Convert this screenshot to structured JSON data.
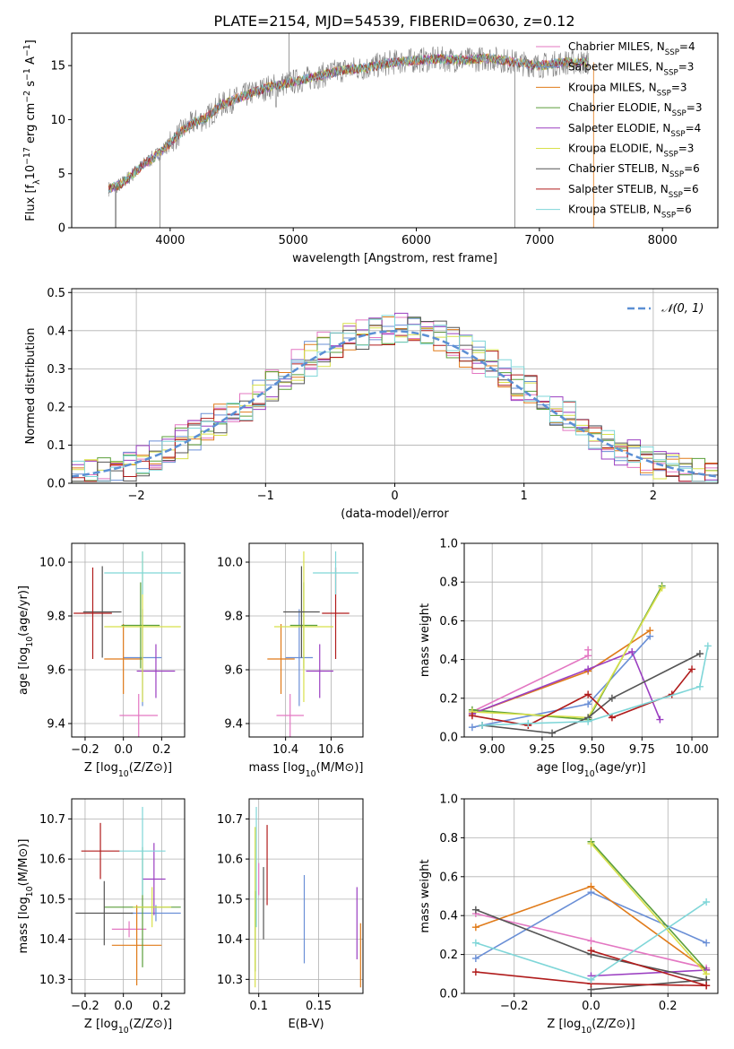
{
  "figure_title": "PLATE=2154, MJD=54539, FIBERID=0630, z=0.12",
  "colors": {
    "chabrier_miles": "#e377c2",
    "salpeter_miles": "#6a8fd6",
    "kroupa_miles": "#e07b1a",
    "chabrier_elodie": "#5a9e3a",
    "salpeter_elodie": "#9b3fc1",
    "kroupa_elodie": "#d8e04a",
    "chabrier_stelib": "#555555",
    "salpeter_stelib": "#b01c1c",
    "kroupa_stelib": "#7fd6d8",
    "gaussian": "#5b8fd4",
    "grid": "#b0b0b0"
  },
  "chart_data": [
    {
      "type": "line",
      "title": "PLATE=2154, MJD=54539, FIBERID=0630, z=0.12",
      "xlabel": "wavelength [Angstrom, rest frame]",
      "ylabel": "Flux [fλ10⁻¹⁷ erg cm⁻² s⁻¹ A⁻¹]",
      "xlim": [
        3200,
        8450
      ],
      "ylim": [
        0,
        18
      ],
      "xticks": [
        4000,
        5000,
        6000,
        7000,
        8000
      ],
      "yticks": [
        0,
        5,
        10,
        15
      ],
      "legend_position": "upper-right",
      "legend": [
        "Chabrier MILES, N_SSP=4",
        "Salpeter MILES, N_SSP=3",
        "Kroupa MILES, N_SSP=3",
        "Chabrier ELODIE, N_SSP=3",
        "Salpeter ELODIE, N_SSP=4",
        "Kroupa ELODIE, N_SSP=3",
        "Chabrier STELIB, N_SSP=6",
        "Salpeter STELIB, N_SSP=6",
        "Kroupa STELIB, N_SSP=6"
      ],
      "spectrum_continuum": {
        "x": [
          3500,
          3600,
          3700,
          3800,
          3900,
          4000,
          4100,
          4200,
          4300,
          4400,
          4600,
          4800,
          5000,
          5200,
          5400,
          5600,
          5800,
          6000,
          6200,
          6400,
          6600,
          6800,
          7000,
          7200,
          7400
        ],
        "y": [
          3.6,
          4.0,
          5.0,
          6.0,
          6.8,
          7.8,
          9.0,
          9.8,
          10.2,
          11.3,
          12.2,
          13.0,
          13.5,
          14.0,
          14.6,
          14.8,
          15.3,
          15.5,
          15.6,
          15.5,
          15.7,
          15.3,
          15.0,
          15.3,
          15.3
        ]
      }
    },
    {
      "type": "histogram",
      "xlabel": "(data-model)/error",
      "ylabel": "Normed distribution",
      "xlim": [
        -2.5,
        2.5
      ],
      "ylim": [
        0,
        0.51
      ],
      "xticks": [
        -2,
        -1,
        0,
        1,
        2
      ],
      "yticks": [
        0.0,
        0.1,
        0.2,
        0.3,
        0.4,
        0.5
      ],
      "legend": [
        "𝒩(0, 1)"
      ],
      "legend_position": "upper-right",
      "gaussian": {
        "mean": 0,
        "sigma": 1
      },
      "bin_width": 0.1
    },
    {
      "type": "errorbar",
      "xlabel": "Z [log10(Z/Z⊙)]",
      "ylabel": "age  [log10(age/yr)]",
      "xlim": [
        -0.27,
        0.32
      ],
      "ylim": [
        9.35,
        10.07
      ],
      "xticks": [
        -0.2,
        0.0,
        0.2
      ],
      "yticks": [
        9.4,
        9.6,
        9.8,
        10.0
      ],
      "points": [
        {
          "model": "chabrier_miles",
          "x": 0.08,
          "xerr": 0.1,
          "y": 9.43,
          "yerr": 0.08
        },
        {
          "model": "salpeter_miles",
          "x": 0.1,
          "xerr": 0.1,
          "y": 9.645,
          "yerr": 0.18
        },
        {
          "model": "kroupa_miles",
          "x": 0.0,
          "xerr": 0.1,
          "y": 9.64,
          "yerr": 0.13
        },
        {
          "model": "chabrier_elodie",
          "x": 0.09,
          "xerr": 0.1,
          "y": 9.765,
          "yerr": 0.16
        },
        {
          "model": "salpeter_elodie",
          "x": 0.17,
          "xerr": 0.1,
          "y": 9.595,
          "yerr": 0.1
        },
        {
          "model": "kroupa_elodie",
          "x": 0.1,
          "xerr": 0.2,
          "y": 9.76,
          "yerr": 0.28
        },
        {
          "model": "chabrier_stelib",
          "x": -0.11,
          "xerr": 0.1,
          "y": 9.815,
          "yerr": 0.17
        },
        {
          "model": "salpeter_stelib",
          "x": -0.16,
          "xerr": 0.1,
          "y": 9.81,
          "yerr": 0.17
        },
        {
          "model": "kroupa_stelib",
          "x": 0.1,
          "xerr": 0.2,
          "y": 9.96,
          "yerr": 0.08
        }
      ]
    },
    {
      "type": "errorbar",
      "xlabel": "mass [log10(M/M⊙)]",
      "xlim": [
        10.24,
        10.74
      ],
      "ylim": [
        9.35,
        10.07
      ],
      "xticks": [
        10.4,
        10.6
      ],
      "yticks": [
        9.4,
        9.6,
        9.8,
        10.0
      ],
      "points": [
        {
          "model": "chabrier_miles",
          "x": 10.42,
          "xerr": 0.06,
          "y": 9.43,
          "yerr": 0.08
        },
        {
          "model": "salpeter_miles",
          "x": 10.46,
          "xerr": 0.06,
          "y": 9.645,
          "yerr": 0.18
        },
        {
          "model": "kroupa_miles",
          "x": 10.38,
          "xerr": 0.06,
          "y": 9.64,
          "yerr": 0.13
        },
        {
          "model": "chabrier_elodie",
          "x": 10.48,
          "xerr": 0.06,
          "y": 9.765,
          "yerr": 0.16
        },
        {
          "model": "salpeter_elodie",
          "x": 10.55,
          "xerr": 0.06,
          "y": 9.595,
          "yerr": 0.1
        },
        {
          "model": "kroupa_elodie",
          "x": 10.48,
          "xerr": 0.13,
          "y": 9.76,
          "yerr": 0.28
        },
        {
          "model": "chabrier_stelib",
          "x": 10.47,
          "xerr": 0.08,
          "y": 9.815,
          "yerr": 0.17
        },
        {
          "model": "salpeter_stelib",
          "x": 10.62,
          "xerr": 0.06,
          "y": 9.81,
          "yerr": 0.17
        },
        {
          "model": "kroupa_stelib",
          "x": 10.62,
          "xerr": 0.1,
          "y": 9.96,
          "yerr": 0.08
        }
      ]
    },
    {
      "type": "line",
      "xlabel": "age  [log10(age/yr)]",
      "ylabel": "mass weight",
      "xlim": [
        8.86,
        10.13
      ],
      "ylim": [
        0,
        1
      ],
      "xticks": [
        9.0,
        9.25,
        9.5,
        9.75,
        10.0
      ],
      "yticks": [
        0.0,
        0.2,
        0.4,
        0.6,
        0.8,
        1.0
      ],
      "series": [
        {
          "model": "chabrier_miles",
          "x": [
            8.9,
            9.48,
            9.48
          ],
          "y": [
            0.13,
            0.42,
            0.45
          ]
        },
        {
          "model": "salpeter_miles",
          "x": [
            8.9,
            9.48,
            9.79
          ],
          "y": [
            0.05,
            0.17,
            0.52
          ]
        },
        {
          "model": "kroupa_miles",
          "x": [
            8.9,
            9.48,
            9.79
          ],
          "y": [
            0.12,
            0.34,
            0.55
          ]
        },
        {
          "model": "chabrier_elodie",
          "x": [
            8.9,
            9.48,
            9.85
          ],
          "y": [
            0.14,
            0.09,
            0.78
          ]
        },
        {
          "model": "salpeter_elodie",
          "x": [
            8.9,
            9.48,
            9.7,
            9.84
          ],
          "y": [
            0.12,
            0.35,
            0.44,
            0.09
          ]
        },
        {
          "model": "kroupa_elodie",
          "x": [
            8.9,
            9.48,
            9.85
          ],
          "y": [
            0.13,
            0.1,
            0.77
          ]
        },
        {
          "model": "chabrier_stelib",
          "x": [
            8.95,
            9.3,
            9.48,
            9.6,
            10.04
          ],
          "y": [
            0.06,
            0.02,
            0.1,
            0.2,
            0.43
          ]
        },
        {
          "model": "salpeter_stelib",
          "x": [
            8.9,
            9.18,
            9.48,
            9.6,
            9.9,
            10.0
          ],
          "y": [
            0.11,
            0.06,
            0.22,
            0.1,
            0.22,
            0.35
          ]
        },
        {
          "model": "kroupa_stelib",
          "x": [
            8.95,
            9.18,
            9.48,
            10.04,
            10.08
          ],
          "y": [
            0.06,
            0.07,
            0.08,
            0.26,
            0.47
          ]
        }
      ]
    },
    {
      "type": "errorbar",
      "xlabel": "Z [log10(Z/Z⊙)]",
      "ylabel": "mass [log10(M/M⊙)]",
      "xlim": [
        -0.27,
        0.32
      ],
      "ylim": [
        10.265,
        10.75
      ],
      "xticks": [
        -0.2,
        0.0,
        0.2
      ],
      "yticks": [
        10.3,
        10.4,
        10.5,
        10.6,
        10.7
      ],
      "points": [
        {
          "model": "chabrier_miles",
          "x": 0.03,
          "xerr": 0.09,
          "y": 10.425,
          "yerr": 0.02
        },
        {
          "model": "salpeter_miles",
          "x": 0.17,
          "xerr": 0.13,
          "y": 10.465,
          "yerr": 0.02
        },
        {
          "model": "kroupa_miles",
          "x": 0.07,
          "xerr": 0.13,
          "y": 10.385,
          "yerr": 0.1
        },
        {
          "model": "chabrier_elodie",
          "x": 0.1,
          "xerr": 0.2,
          "y": 10.48,
          "yerr": 0.15
        },
        {
          "model": "salpeter_elodie",
          "x": 0.16,
          "xerr": 0.06,
          "y": 10.55,
          "yerr": 0.09
        },
        {
          "model": "kroupa_elodie",
          "x": 0.15,
          "xerr": 0.1,
          "y": 10.48,
          "yerr": 0.05
        },
        {
          "model": "chabrier_stelib",
          "x": -0.1,
          "xerr": 0.15,
          "y": 10.465,
          "yerr": 0.08
        },
        {
          "model": "salpeter_stelib",
          "x": -0.12,
          "xerr": 0.1,
          "y": 10.62,
          "yerr": 0.07
        },
        {
          "model": "kroupa_stelib",
          "x": 0.1,
          "xerr": 0.12,
          "y": 10.62,
          "yerr": 0.11
        }
      ]
    },
    {
      "type": "errorbar",
      "xlabel": "E(B-V)",
      "xlim": [
        0.092,
        0.187
      ],
      "ylim": [
        10.265,
        10.75
      ],
      "xticks": [
        0.1,
        0.15
      ],
      "yticks": [
        10.3,
        10.4,
        10.5,
        10.6,
        10.7
      ],
      "points": [
        {
          "model": "chabrier_miles",
          "x": 0.1,
          "xerr": 0.0,
          "y": 10.55,
          "yerr": 0.04
        },
        {
          "model": "salpeter_miles",
          "x": 0.138,
          "xerr": 0.0,
          "y": 10.45,
          "yerr": 0.11
        },
        {
          "model": "kroupa_miles",
          "x": 0.185,
          "xerr": 0.0,
          "y": 10.36,
          "yerr": 0.08
        },
        {
          "model": "chabrier_elodie",
          "x": 0.097,
          "xerr": 0.0,
          "y": 10.42,
          "yerr": 0.1
        },
        {
          "model": "salpeter_elodie",
          "x": 0.182,
          "xerr": 0.0,
          "y": 10.44,
          "yerr": 0.09
        },
        {
          "model": "kroupa_elodie",
          "x": 0.097,
          "xerr": 0.0,
          "y": 10.48,
          "yerr": 0.2
        },
        {
          "model": "chabrier_stelib",
          "x": 0.104,
          "xerr": 0.0,
          "y": 10.49,
          "yerr": 0.09
        },
        {
          "model": "salpeter_stelib",
          "x": 0.107,
          "xerr": 0.0,
          "y": 10.585,
          "yerr": 0.1
        },
        {
          "model": "kroupa_stelib",
          "x": 0.098,
          "xerr": 0.0,
          "y": 10.58,
          "yerr": 0.15
        }
      ]
    },
    {
      "type": "line",
      "xlabel": "Z [log10(Z/Z⊙)]",
      "ylabel": "mass weight",
      "xlim": [
        -0.33,
        0.33
      ],
      "ylim": [
        0,
        1
      ],
      "xticks": [
        -0.2,
        0.0,
        0.2
      ],
      "yticks": [
        0.0,
        0.2,
        0.4,
        0.6,
        0.8,
        1.0
      ],
      "series": [
        {
          "model": "chabrier_miles",
          "x": [
            -0.3,
            0.0,
            0.3
          ],
          "y": [
            0.41,
            0.27,
            0.13
          ]
        },
        {
          "model": "salpeter_miles",
          "x": [
            -0.3,
            0.0,
            0.3
          ],
          "y": [
            0.18,
            0.52,
            0.26
          ]
        },
        {
          "model": "kroupa_miles",
          "x": [
            -0.3,
            0.0,
            0.3
          ],
          "y": [
            0.34,
            0.55,
            0.12
          ]
        },
        {
          "model": "chabrier_elodie",
          "x": [
            0.0,
            0.3
          ],
          "y": [
            0.78,
            0.12
          ]
        },
        {
          "model": "salpeter_elodie",
          "x": [
            0.0,
            0.3
          ],
          "y": [
            0.09,
            0.12
          ]
        },
        {
          "model": "kroupa_elodie",
          "x": [
            0.0,
            0.3
          ],
          "y": [
            0.77,
            0.1
          ]
        },
        {
          "model": "chabrier_stelib",
          "x": [
            -0.3,
            0.0,
            0.3
          ],
          "y": [
            0.43,
            0.2,
            0.07
          ]
        },
        {
          "model": "chabrier_stelib_b",
          "x": [
            0.0,
            0.3
          ],
          "y": [
            0.02,
            0.07
          ]
        },
        {
          "model": "salpeter_stelib",
          "x": [
            -0.3,
            0.0,
            0.3
          ],
          "y": [
            0.11,
            0.05,
            0.04
          ]
        },
        {
          "model": "salpeter_stelib_b",
          "x": [
            0.0,
            0.3
          ],
          "y": [
            0.22,
            0.04
          ]
        },
        {
          "model": "kroupa_stelib",
          "x": [
            -0.3,
            0.0,
            0.3
          ],
          "y": [
            0.26,
            0.07,
            0.47
          ]
        }
      ]
    }
  ]
}
